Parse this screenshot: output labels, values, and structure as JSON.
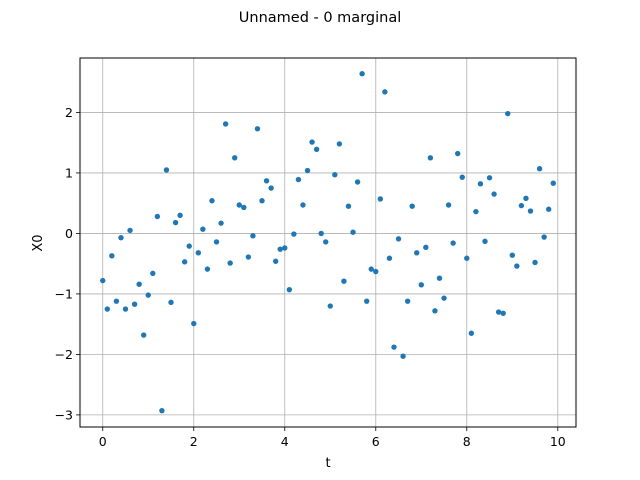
{
  "chart_data": {
    "type": "scatter",
    "title": "Unnamed - 0 marginal",
    "xlabel": "t",
    "ylabel": "X0",
    "xlim": [
      -0.5,
      10.4
    ],
    "ylim": [
      -3.2,
      2.9
    ],
    "xticks": [
      0,
      2,
      4,
      6,
      8,
      10
    ],
    "yticks": [
      -3,
      -2,
      -1,
      0,
      1,
      2
    ],
    "xtick_labels": [
      "0",
      "2",
      "4",
      "6",
      "8",
      "10"
    ],
    "ytick_labels": [
      "−3",
      "−2",
      "−1",
      "0",
      "1",
      "2"
    ],
    "grid": true,
    "marker_color": "#1f77b4",
    "series": [
      {
        "x": [
          0.0,
          0.1,
          0.2,
          0.3,
          0.4,
          0.5,
          0.6,
          0.7,
          0.8,
          0.9,
          1.0,
          1.1,
          1.2,
          1.3,
          1.4,
          1.5,
          1.6,
          1.7,
          1.8,
          1.9,
          2.0,
          2.1,
          2.2,
          2.3,
          2.4,
          2.5,
          2.6,
          2.7,
          2.8,
          2.9,
          3.0,
          3.1,
          3.2,
          3.3,
          3.4,
          3.5,
          3.6,
          3.7,
          3.8,
          3.9,
          4.0,
          4.1,
          4.2,
          4.3,
          4.4,
          4.5,
          4.6,
          4.7,
          4.8,
          4.9,
          5.0,
          5.1,
          5.2,
          5.3,
          5.4,
          5.5,
          5.6,
          5.7,
          5.8,
          5.9,
          6.0,
          6.1,
          6.2,
          6.3,
          6.4,
          6.5,
          6.6,
          6.7,
          6.8,
          6.9,
          7.0,
          7.1,
          7.2,
          7.3,
          7.4,
          7.5,
          7.6,
          7.7,
          7.8,
          7.9,
          8.0,
          8.1,
          8.2,
          8.3,
          8.4,
          8.5,
          8.6,
          8.7,
          8.8,
          8.9,
          9.0,
          9.1,
          9.2,
          9.3,
          9.4,
          9.5,
          9.6,
          9.7,
          9.8,
          9.9
        ],
        "y": [
          -0.78,
          -1.25,
          -0.37,
          -1.12,
          -0.07,
          -1.25,
          0.05,
          -1.17,
          -0.84,
          -1.68,
          -1.02,
          -0.66,
          0.28,
          -2.93,
          1.05,
          -1.14,
          0.18,
          0.3,
          -0.47,
          -0.21,
          -1.49,
          -0.32,
          0.07,
          -0.59,
          0.54,
          -0.14,
          0.17,
          1.81,
          -0.49,
          1.25,
          0.47,
          0.43,
          -0.39,
          -0.04,
          1.73,
          0.54,
          0.87,
          0.75,
          -0.46,
          -0.26,
          -0.24,
          -0.93,
          -0.01,
          0.89,
          0.47,
          1.04,
          1.51,
          1.39,
          0.0,
          -0.14,
          -1.2,
          0.97,
          1.48,
          -0.79,
          0.45,
          0.02,
          0.85,
          2.64,
          -1.12,
          -0.59,
          -0.63,
          0.57,
          2.34,
          -0.41,
          -1.88,
          -0.09,
          -2.03,
          -1.12,
          0.45,
          -0.32,
          -0.85,
          -0.23,
          1.25,
          -1.28,
          -0.74,
          -1.07,
          0.47,
          -0.16,
          1.32,
          0.93,
          -0.41,
          -1.65,
          0.36,
          0.82,
          -0.13,
          0.92,
          0.65,
          -1.3,
          -1.32,
          1.98,
          -0.36,
          -0.54,
          0.46,
          0.58,
          0.37,
          -0.48,
          1.07,
          -0.06,
          0.4,
          0.83
        ]
      }
    ]
  }
}
